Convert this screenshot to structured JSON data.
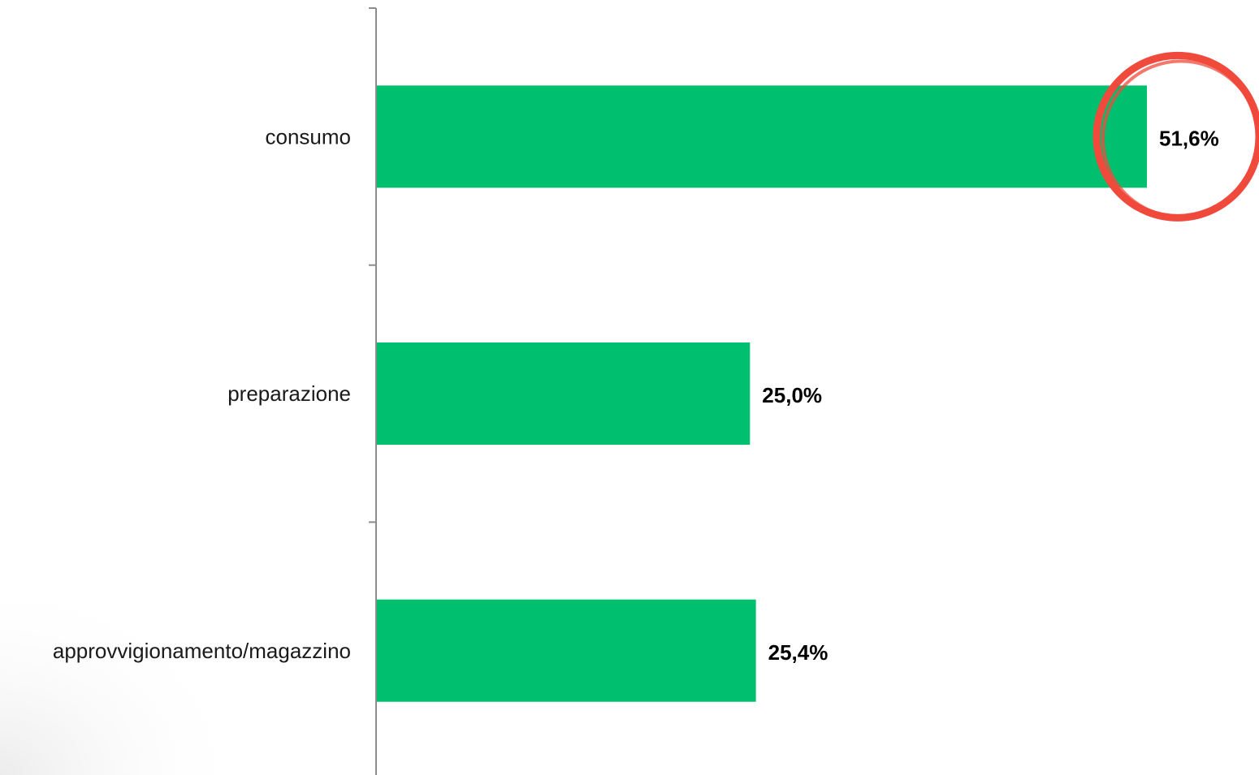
{
  "chart_data": {
    "type": "bar",
    "orientation": "horizontal",
    "categories": [
      "consumo",
      "preparazione",
      "approvvigionamento/magazzino"
    ],
    "values": [
      51.6,
      25.0,
      25.4
    ],
    "value_labels": [
      "51,6%",
      "25,0%",
      "25,4%"
    ],
    "xlim": [
      0,
      60
    ],
    "grid": false,
    "bar_color": "#00BF6F",
    "highlight": {
      "category": "consumo",
      "shape": "circle",
      "color": "#F04A3C"
    }
  }
}
